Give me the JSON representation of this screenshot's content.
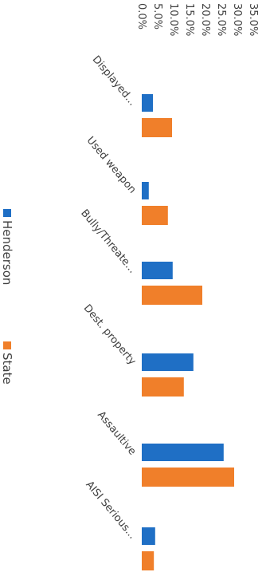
{
  "chart_data": {
    "type": "bar",
    "orientation": "horizontal",
    "rotated": true,
    "categories": [
      "Displayed...",
      "Used weapon",
      "Bully/Threate...",
      "Dest. property",
      "Assaultive",
      "AISI Serious..."
    ],
    "series": [
      {
        "name": "Henderson",
        "color": "#1f6fc5",
        "values": [
          3.5,
          2.2,
          9.7,
          16.2,
          25.7,
          4.2
        ]
      },
      {
        "name": "State",
        "color": "#f07f2a",
        "values": [
          9.5,
          8.2,
          19,
          13.2,
          29,
          3.8
        ]
      }
    ],
    "xlim": [
      0,
      35
    ],
    "xticks": [
      {
        "value": 0,
        "label": "0.0%"
      },
      {
        "value": 5,
        "label": "5.0%"
      },
      {
        "value": 10,
        "label": "10.0%"
      },
      {
        "value": 15,
        "label": "15.0%"
      },
      {
        "value": 20,
        "label": "20.0%"
      },
      {
        "value": 25,
        "label": "25.0%"
      },
      {
        "value": 30,
        "label": "30.0%"
      },
      {
        "value": 35,
        "label": "35.0%"
      }
    ],
    "legend": "left"
  }
}
